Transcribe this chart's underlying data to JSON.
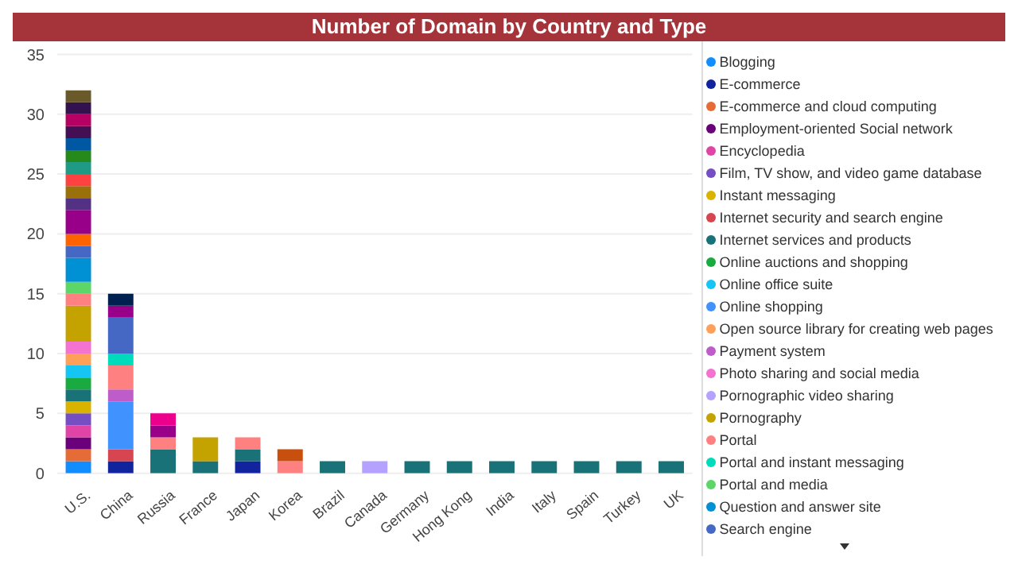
{
  "chart_data": {
    "type": "bar",
    "title": "Number of Domain by Country and Type",
    "stacked": true,
    "grid": "y",
    "legend": "right",
    "ylim": [
      0,
      35
    ],
    "yticks": [
      0,
      5,
      10,
      15,
      20,
      25,
      30,
      35
    ],
    "categories": [
      "U.S.",
      "China",
      "Russia",
      "France",
      "Japan",
      "Korea",
      "Brazil",
      "Canada",
      "Germany",
      "Hong Kong",
      "India",
      "Italy",
      "Spain",
      "Turkey",
      "UK"
    ],
    "series": [
      {
        "name": "Blogging",
        "color": "#118dff",
        "values": [
          1,
          null,
          null,
          null,
          null,
          null,
          null,
          null,
          null,
          null,
          null,
          null,
          null,
          null,
          null
        ]
      },
      {
        "name": "E-commerce",
        "color": "#12239e",
        "values": [
          null,
          1,
          null,
          null,
          1,
          null,
          null,
          null,
          null,
          null,
          null,
          null,
          null,
          null,
          null
        ]
      },
      {
        "name": "E-commerce and cloud computing",
        "color": "#e66c37",
        "values": [
          1,
          null,
          null,
          null,
          null,
          null,
          null,
          null,
          null,
          null,
          null,
          null,
          null,
          null,
          null
        ]
      },
      {
        "name": "Employment-oriented Social network",
        "color": "#6b007b",
        "values": [
          1,
          null,
          null,
          null,
          null,
          null,
          null,
          null,
          null,
          null,
          null,
          null,
          null,
          null,
          null
        ]
      },
      {
        "name": "Encyclopedia",
        "color": "#e044a7",
        "values": [
          1,
          null,
          null,
          null,
          null,
          null,
          null,
          null,
          null,
          null,
          null,
          null,
          null,
          null,
          null
        ]
      },
      {
        "name": "Film, TV show, and video game database",
        "color": "#744ec2",
        "values": [
          1,
          null,
          null,
          null,
          null,
          null,
          null,
          null,
          null,
          null,
          null,
          null,
          null,
          null,
          null
        ]
      },
      {
        "name": "Instant messaging",
        "color": "#d9b300",
        "values": [
          1,
          null,
          null,
          null,
          null,
          null,
          null,
          null,
          null,
          null,
          null,
          null,
          null,
          null,
          null
        ]
      },
      {
        "name": "Internet security and search engine",
        "color": "#d64550",
        "values": [
          null,
          1,
          null,
          null,
          null,
          null,
          null,
          null,
          null,
          null,
          null,
          null,
          null,
          null,
          null
        ]
      },
      {
        "name": "Internet services and products",
        "color": "#197278",
        "values": [
          1,
          null,
          2,
          1,
          1,
          null,
          1,
          null,
          1,
          1,
          1,
          1,
          1,
          1,
          1
        ]
      },
      {
        "name": "Online auctions and shopping",
        "color": "#1aab40",
        "values": [
          1,
          null,
          null,
          null,
          null,
          null,
          null,
          null,
          null,
          null,
          null,
          null,
          null,
          null,
          null
        ]
      },
      {
        "name": "Online office suite",
        "color": "#15c6f4",
        "values": [
          1,
          null,
          null,
          null,
          null,
          null,
          null,
          null,
          null,
          null,
          null,
          null,
          null,
          null,
          null
        ]
      },
      {
        "name": "Online shopping",
        "color": "#4092ff",
        "values": [
          null,
          4,
          null,
          null,
          null,
          null,
          null,
          null,
          null,
          null,
          null,
          null,
          null,
          null,
          null
        ]
      },
      {
        "name": "Open source library for creating web pages",
        "color": "#ffa058",
        "values": [
          1,
          null,
          null,
          null,
          null,
          null,
          null,
          null,
          null,
          null,
          null,
          null,
          null,
          null,
          null
        ]
      },
      {
        "name": "Payment system",
        "color": "#be5dc9",
        "values": [
          null,
          1,
          null,
          null,
          null,
          null,
          null,
          null,
          null,
          null,
          null,
          null,
          null,
          null,
          null
        ]
      },
      {
        "name": "Photo sharing and social media",
        "color": "#f472d0",
        "values": [
          1,
          null,
          null,
          null,
          null,
          null,
          null,
          null,
          null,
          null,
          null,
          null,
          null,
          null,
          null
        ]
      },
      {
        "name": "Pornographic video sharing",
        "color": "#b5a1ff",
        "values": [
          null,
          null,
          null,
          null,
          null,
          null,
          null,
          1,
          null,
          null,
          null,
          null,
          null,
          null,
          null
        ]
      },
      {
        "name": "Pornography",
        "color": "#c4a200",
        "values": [
          3,
          null,
          null,
          2,
          null,
          null,
          null,
          null,
          null,
          null,
          null,
          null,
          null,
          null,
          null
        ]
      },
      {
        "name": "Portal",
        "color": "#ff8080",
        "values": [
          1,
          2,
          1,
          null,
          1,
          1,
          null,
          null,
          null,
          null,
          null,
          null,
          null,
          null,
          null
        ]
      },
      {
        "name": "Portal and instant messaging",
        "color": "#00dbbc",
        "values": [
          null,
          1,
          null,
          null,
          null,
          null,
          null,
          null,
          null,
          null,
          null,
          null,
          null,
          null,
          null
        ]
      },
      {
        "name": "Portal and media",
        "color": "#5bd667",
        "values": [
          1,
          null,
          null,
          null,
          null,
          null,
          null,
          null,
          null,
          null,
          null,
          null,
          null,
          null,
          null
        ]
      },
      {
        "name": "Question and answer site",
        "color": "#0091d5",
        "values": [
          2,
          null,
          null,
          null,
          null,
          null,
          null,
          null,
          null,
          null,
          null,
          null,
          null,
          null,
          null
        ]
      },
      {
        "name": "Search engine",
        "color": "#4668c5",
        "values": [
          1,
          3,
          null,
          null,
          null,
          null,
          null,
          null,
          null,
          null,
          null,
          null,
          null,
          null,
          null
        ]
      },
      {
        "color": "#ff6300",
        "values": [
          1,
          null,
          null,
          null,
          null,
          null,
          null,
          null,
          null,
          null,
          null,
          null,
          null,
          null,
          null
        ]
      },
      {
        "color": "#99008a",
        "values": [
          2,
          1,
          1,
          null,
          null,
          null,
          null,
          null,
          null,
          null,
          null,
          null,
          null,
          null,
          null
        ]
      },
      {
        "color": "#ec008c",
        "values": [
          null,
          null,
          1,
          null,
          null,
          null,
          null,
          null,
          null,
          null,
          null,
          null,
          null,
          null,
          null
        ]
      },
      {
        "color": "#533285",
        "values": [
          1,
          null,
          null,
          null,
          null,
          null,
          null,
          null,
          null,
          null,
          null,
          null,
          null,
          null,
          null
        ]
      },
      {
        "color": "#99700a",
        "values": [
          1,
          null,
          null,
          null,
          null,
          null,
          null,
          null,
          null,
          null,
          null,
          null,
          null,
          null,
          null
        ]
      },
      {
        "color": "#ff4141",
        "values": [
          1,
          null,
          null,
          null,
          null,
          null,
          null,
          null,
          null,
          null,
          null,
          null,
          null,
          null,
          null
        ]
      },
      {
        "color": "#1f9a85",
        "values": [
          1,
          null,
          null,
          null,
          null,
          null,
          null,
          null,
          null,
          null,
          null,
          null,
          null,
          null,
          null
        ]
      },
      {
        "color": "#25891c",
        "values": [
          1,
          null,
          null,
          null,
          null,
          null,
          null,
          null,
          null,
          null,
          null,
          null,
          null,
          null,
          null
        ]
      },
      {
        "color": "#0057a2",
        "values": [
          1,
          null,
          null,
          null,
          null,
          null,
          null,
          null,
          null,
          null,
          null,
          null,
          null,
          null,
          null
        ]
      },
      {
        "color": "#002050",
        "values": [
          null,
          1,
          null,
          null,
          null,
          null,
          null,
          null,
          null,
          null,
          null,
          null,
          null,
          null,
          null
        ]
      },
      {
        "color": "#c94f0f",
        "values": [
          null,
          null,
          null,
          null,
          null,
          1,
          null,
          null,
          null,
          null,
          null,
          null,
          null,
          null,
          null
        ]
      },
      {
        "color": "#450f54",
        "values": [
          1,
          null,
          null,
          null,
          null,
          null,
          null,
          null,
          null,
          null,
          null,
          null,
          null,
          null,
          null
        ]
      },
      {
        "color": "#b60064",
        "values": [
          1,
          null,
          null,
          null,
          null,
          null,
          null,
          null,
          null,
          null,
          null,
          null,
          null,
          null,
          null
        ]
      },
      {
        "color": "#34124f",
        "values": [
          1,
          null,
          null,
          null,
          null,
          null,
          null,
          null,
          null,
          null,
          null,
          null,
          null,
          null,
          null
        ]
      },
      {
        "color": "#6a5a29",
        "values": [
          1,
          null,
          null,
          null,
          null,
          null,
          null,
          null,
          null,
          null,
          null,
          null,
          null,
          null,
          null
        ]
      }
    ]
  }
}
